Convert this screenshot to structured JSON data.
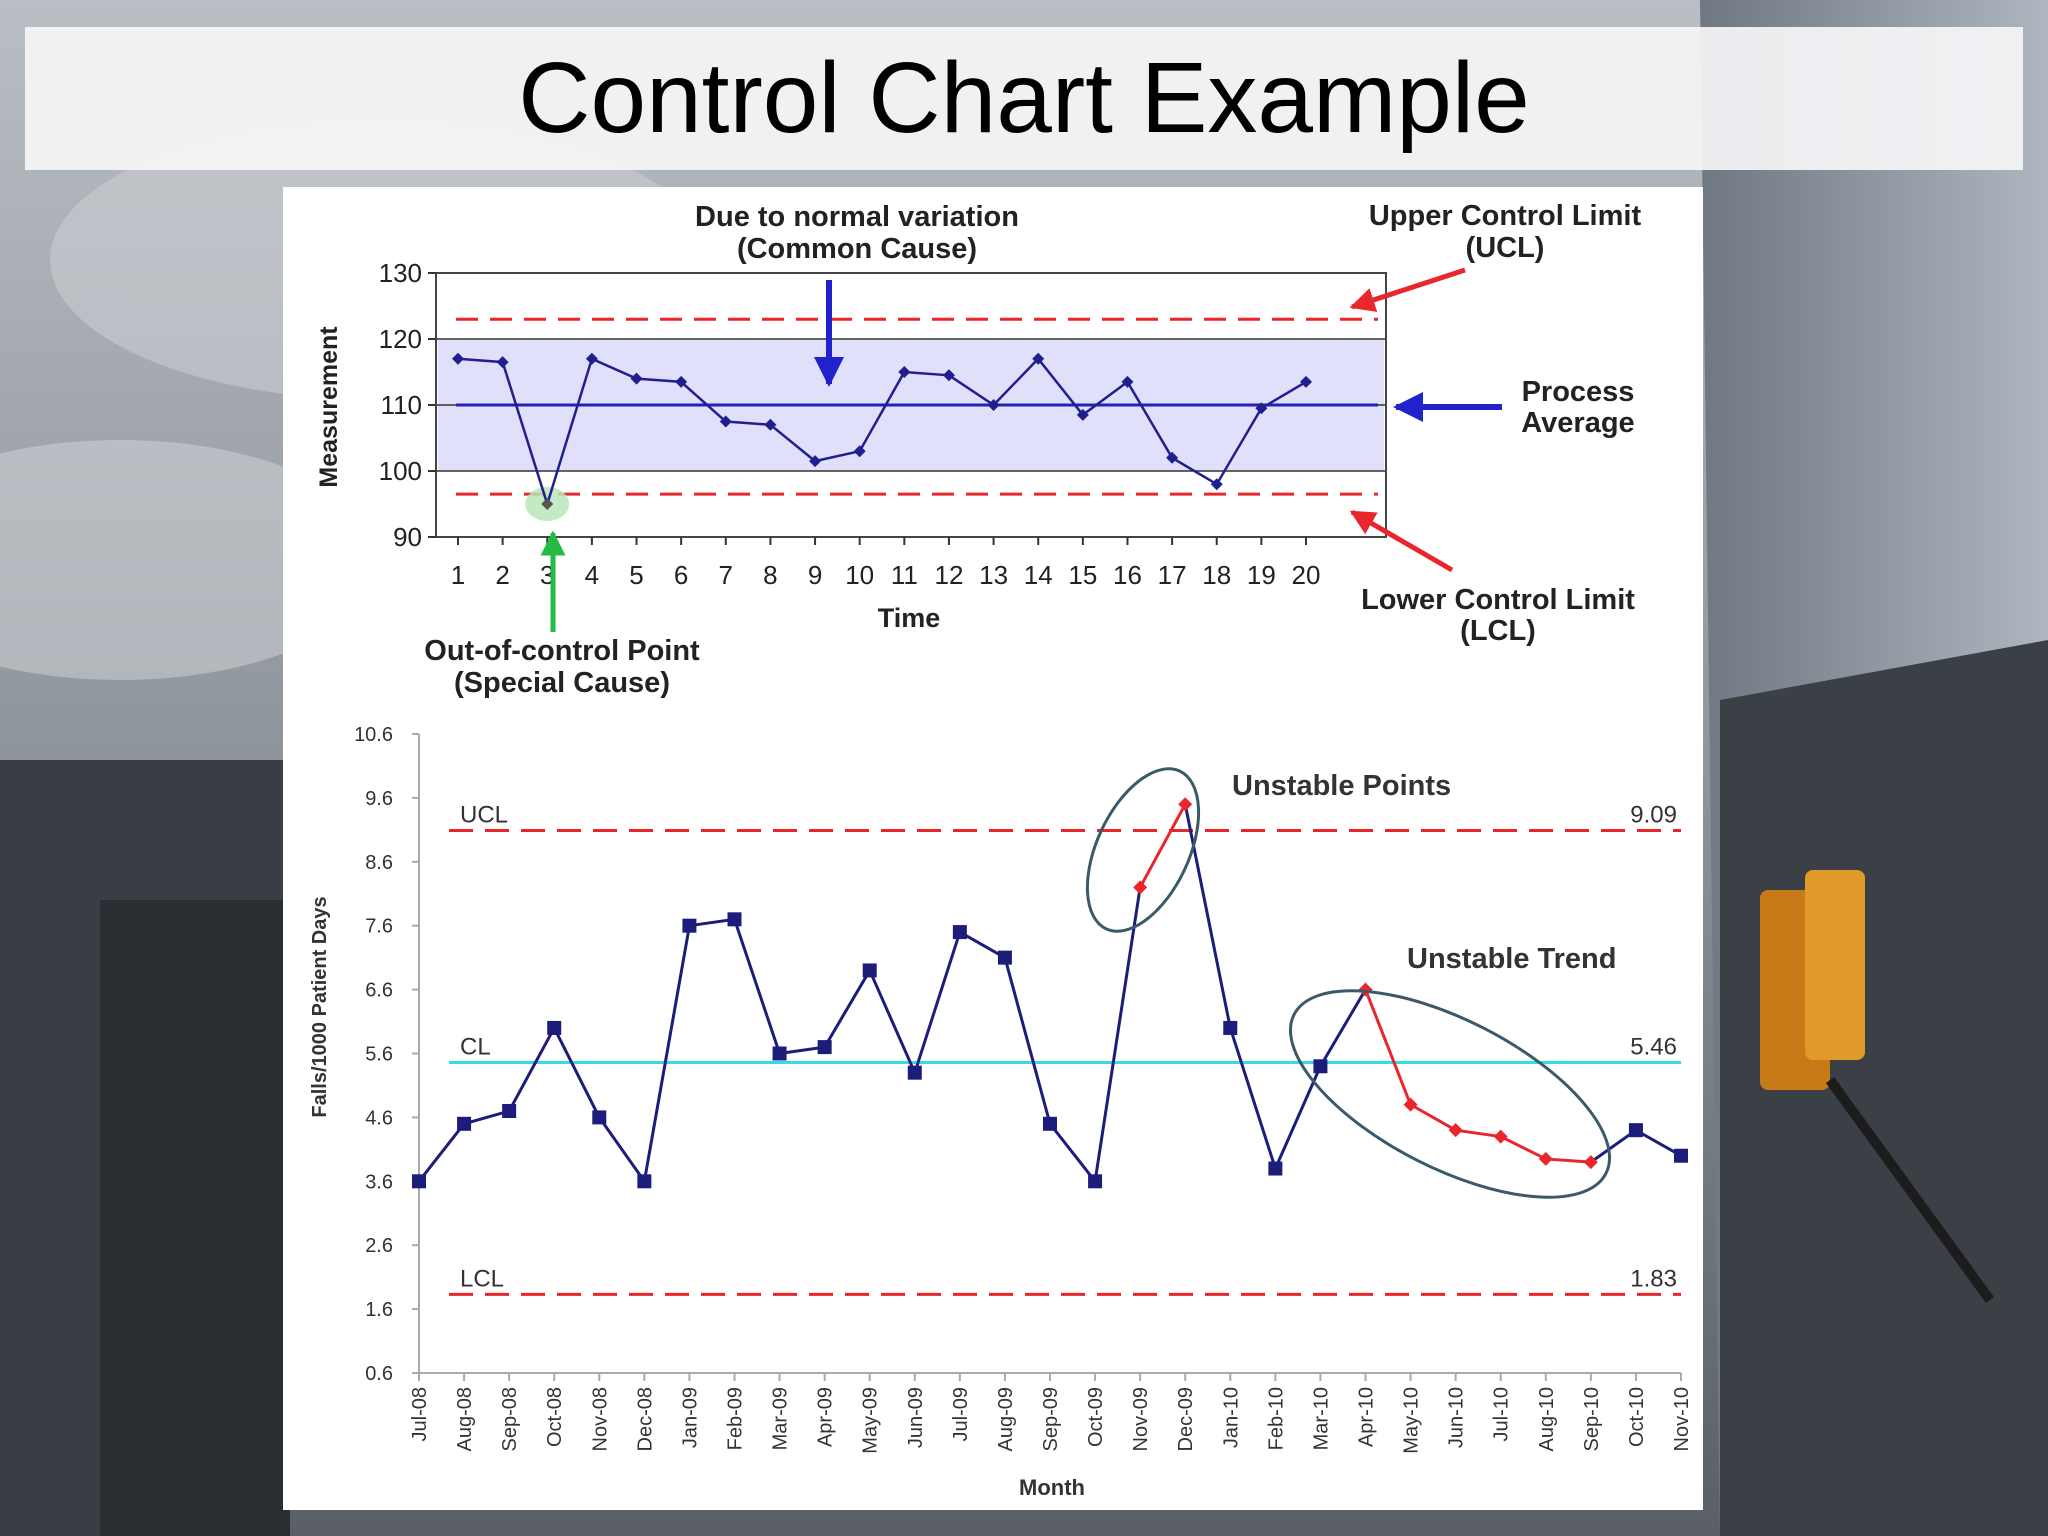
{
  "slide": {
    "title": "Control Chart Example"
  },
  "chart_data": [
    {
      "type": "line",
      "title": "",
      "xlabel": "Time",
      "ylabel": "Measurement",
      "x": [
        1,
        2,
        3,
        4,
        5,
        6,
        7,
        8,
        9,
        10,
        11,
        12,
        13,
        14,
        15,
        16,
        17,
        18,
        19,
        20
      ],
      "y": [
        117,
        116.5,
        95,
        117,
        114,
        113.5,
        107.5,
        107,
        101.5,
        103,
        115,
        114.5,
        110,
        117,
        108.5,
        113.5,
        102,
        98,
        109.5,
        113.5
      ],
      "xlim": [
        0.5,
        20.5
      ],
      "ylim": [
        90,
        130
      ],
      "yticks": [
        90,
        100,
        110,
        120,
        130
      ],
      "ucl": 123,
      "lcl": 96.5,
      "average": 110,
      "band": [
        100,
        120
      ],
      "colors": {
        "line": "#1f1f8f",
        "limit": "#e8262b",
        "average": "#2222bb",
        "band": "#e0e0fb",
        "highlight": "#b8e6b8"
      },
      "annotations": {
        "common_cause_1": "Due to normal variation",
        "common_cause_2": "(Common Cause)",
        "ucl_1": "Upper Control Limit",
        "ucl_2": "(UCL)",
        "average_1": "Process",
        "average_2": "Average",
        "lcl_1": "Lower Control Limit",
        "lcl_2": "(LCL)",
        "special_1": "Out-of-control Point",
        "special_2": "(Special Cause)"
      }
    },
    {
      "type": "line",
      "title": "",
      "xlabel": "Month",
      "ylabel": "Falls/1000  Patient Days",
      "categories": [
        "Jul-08",
        "Aug-08",
        "Sep-08",
        "Oct-08",
        "Nov-08",
        "Dec-08",
        "Jan-09",
        "Feb-09",
        "Mar-09",
        "Apr-09",
        "May-09",
        "Jun-09",
        "Jul-09",
        "Aug-09",
        "Sep-09",
        "Oct-09",
        "Nov-09",
        "Dec-09",
        "Jan-10",
        "Feb-10",
        "Mar-10",
        "Apr-10",
        "May-10",
        "Jun-10",
        "Jul-10",
        "Aug-10",
        "Sep-10",
        "Oct-10",
        "Nov-10"
      ],
      "values": [
        3.6,
        4.5,
        4.7,
        6.0,
        4.6,
        3.6,
        7.6,
        7.7,
        5.6,
        5.7,
        6.9,
        5.3,
        7.5,
        7.1,
        4.5,
        3.6,
        8.2,
        9.5,
        6.0,
        3.8,
        5.4,
        6.6,
        4.8,
        4.4,
        4.3,
        3.95,
        3.9,
        4.4,
        4.0
      ],
      "unstable_indices": [
        16,
        17,
        21,
        22,
        23,
        24,
        25,
        26
      ],
      "ylim": [
        0.6,
        10.6
      ],
      "yticks": [
        "0.6",
        "1.6",
        "2.6",
        "3.6",
        "4.6",
        "5.6",
        "6.6",
        "7.6",
        "8.6",
        "9.6",
        "10.6"
      ],
      "ucl": 9.09,
      "cl": 5.46,
      "lcl": 1.83,
      "limit_labels": {
        "ucl": "UCL",
        "cl": "CL",
        "lcl": "LCL"
      },
      "limit_values": {
        "ucl": "9.09",
        "cl": "5.46",
        "lcl": "1.83"
      },
      "colors": {
        "line": "#1c1c7a",
        "unstable": "#e8262b",
        "limit": "#e8262b",
        "cl": "#33dde8",
        "ellipse": "#3a5a6a"
      },
      "annotations": {
        "points": "Unstable Points",
        "trend": "Unstable Trend"
      }
    }
  ]
}
